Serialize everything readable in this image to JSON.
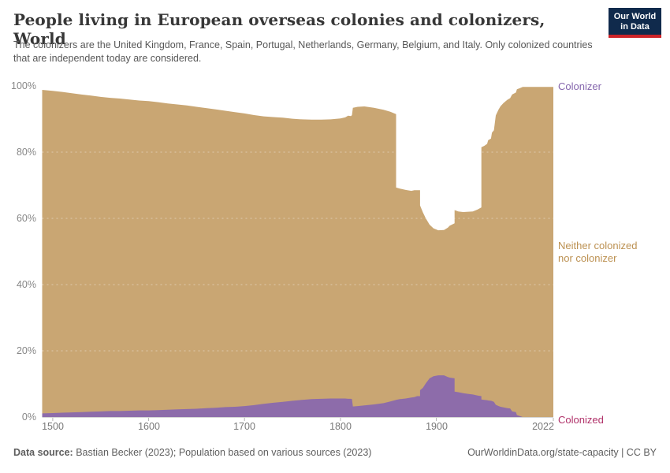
{
  "header": {
    "title": "People living in European overseas colonies and colonizers, World",
    "subtitle": "The colonizers are the United Kingdom, France, Spain, Portugal, Netherlands, Germany, Belgium, and Italy. Only colonized countries that are independent today are considered.",
    "logo": {
      "line1": "Our World",
      "line2": "in Data",
      "bg_color": "#102a4c",
      "accent_color": "#cd2328"
    }
  },
  "footer": {
    "source_label": "Data source:",
    "source_text": " Bastian Becker (2023); Population based on various sources (2023)",
    "credit": "OurWorldinData.org/state-capacity | CC BY"
  },
  "chart_data": {
    "type": "area",
    "stacked": true,
    "title": "People living in European overseas colonies and colonizers, World",
    "xlabel": "Year",
    "ylabel": "Share of world population",
    "xlim": [
      1489,
      2022
    ],
    "ylim": [
      0,
      100
    ],
    "grid": "horizontal dotted lines every 20%",
    "legend_position": "direct labels at right edge of plot",
    "x_ticks": [
      1500,
      1600,
      1700,
      1800,
      1900,
      2022
    ],
    "x_tick_labels": [
      "1500",
      "1600",
      "1700",
      "1800",
      "1900",
      "2022"
    ],
    "y_ticks": [
      0,
      20,
      40,
      60,
      80,
      100
    ],
    "y_tick_labels": [
      "0%",
      "20%",
      "40%",
      "60%",
      "80%",
      "100%"
    ],
    "right_labels": {
      "top": "Colonizer",
      "middle": [
        "Neither colonized",
        "nor colonizer"
      ],
      "bottom": "Colonized"
    },
    "x": [
      1489,
      1500,
      1510,
      1520,
      1530,
      1540,
      1550,
      1560,
      1570,
      1580,
      1590,
      1600,
      1610,
      1620,
      1630,
      1640,
      1650,
      1660,
      1670,
      1680,
      1690,
      1700,
      1710,
      1720,
      1730,
      1740,
      1750,
      1760,
      1770,
      1780,
      1790,
      1800,
      1805,
      1808,
      1811,
      1812,
      1813,
      1818,
      1825,
      1835,
      1845,
      1852,
      1857,
      1858,
      1858,
      1862,
      1868,
      1874,
      1877,
      1880,
      1883,
      1883,
      1886,
      1889,
      1893,
      1897,
      1902,
      1908,
      1912,
      1914,
      1919,
      1919,
      1923,
      1928,
      1933,
      1938,
      1943,
      1947,
      1947,
      1950,
      1953,
      1954,
      1957,
      1958,
      1960,
      1962,
      1965,
      1967,
      1970,
      1974,
      1977,
      1979,
      1983,
      1984,
      1987,
      1990,
      2000,
      2010,
      2022
    ],
    "series": [
      {
        "name": "Colonized",
        "color": "#ad3468",
        "label_color": "#b03169",
        "values": [
          0.1,
          0.3,
          0.5,
          0.8,
          1.1,
          1.3,
          1.6,
          1.8,
          2.0,
          2.2,
          2.4,
          2.6,
          2.8,
          3.1,
          3.3,
          3.5,
          3.8,
          4.0,
          4.3,
          4.5,
          4.8,
          5.0,
          5.2,
          5.2,
          5.1,
          5.0,
          5.0,
          4.9,
          4.8,
          4.7,
          4.5,
          4.2,
          3.9,
          3.5,
          3.6,
          3.4,
          3.4,
          3.0,
          2.7,
          2.8,
          3.0,
          3.1,
          3.3,
          3.3,
          25.5,
          25.6,
          25.8,
          25.8,
          25.5,
          25.2,
          25.2,
          28.0,
          29.4,
          29.8,
          30.2,
          30.7,
          31.0,
          30.9,
          30.7,
          30.3,
          29.8,
          29.8,
          30.4,
          30.9,
          31.0,
          31.1,
          30.8,
          30.4,
          13.2,
          12.9,
          12.4,
          11.4,
          11.0,
          9.3,
          8.8,
          5.2,
          3.8,
          3.0,
          2.3,
          1.5,
          1.1,
          0.9,
          0.5,
          0.4,
          0.4,
          0.3,
          0.3,
          0.3,
          0.3
        ]
      },
      {
        "name": "Neither colonized nor colonizer",
        "color": "#c9a673",
        "label_color": "#bc9152",
        "values": [
          98.8,
          98.5,
          98.2,
          97.8,
          97.4,
          97.1,
          96.7,
          96.4,
          96.2,
          95.9,
          95.6,
          95.4,
          95.1,
          94.7,
          94.4,
          94.1,
          93.7,
          93.3,
          92.9,
          92.5,
          92.1,
          91.7,
          91.2,
          90.8,
          90.6,
          90.4,
          90.1,
          89.9,
          89.8,
          89.8,
          89.9,
          90.2,
          90.5,
          91.0,
          90.9,
          91.2,
          93.4,
          93.7,
          93.8,
          93.4,
          92.8,
          92.2,
          91.6,
          91.5,
          69.3,
          69.0,
          68.6,
          68.3,
          68.5,
          68.5,
          68.5,
          63.9,
          61.8,
          60.0,
          58.1,
          57.0,
          56.4,
          56.5,
          57.2,
          57.8,
          58.5,
          62.5,
          62.1,
          61.9,
          62.0,
          62.1,
          62.7,
          63.3,
          81.5,
          81.9,
          82.5,
          83.6,
          84.1,
          85.9,
          86.6,
          91.1,
          92.9,
          93.9,
          94.8,
          95.8,
          96.3,
          97.4,
          98.0,
          99.0,
          99.3,
          99.7,
          99.7,
          99.7,
          99.7
        ]
      },
      {
        "name": "Colonizer",
        "color": "#8d6caa",
        "label_color": "#8566ad",
        "values": [
          1.1,
          1.2,
          1.3,
          1.4,
          1.5,
          1.6,
          1.7,
          1.8,
          1.8,
          1.9,
          2.0,
          2.0,
          2.1,
          2.2,
          2.3,
          2.4,
          2.5,
          2.7,
          2.8,
          3.0,
          3.1,
          3.3,
          3.6,
          4.0,
          4.3,
          4.6,
          4.9,
          5.2,
          5.4,
          5.5,
          5.6,
          5.6,
          5.6,
          5.5,
          5.5,
          5.4,
          3.2,
          3.3,
          3.5,
          3.8,
          4.2,
          4.7,
          5.1,
          5.2,
          5.2,
          5.4,
          5.6,
          5.9,
          6.0,
          6.3,
          6.3,
          8.1,
          8.8,
          10.2,
          11.7,
          12.3,
          12.6,
          12.6,
          12.1,
          11.9,
          11.7,
          7.7,
          7.5,
          7.2,
          7.0,
          6.8,
          6.5,
          6.3,
          5.3,
          5.2,
          5.1,
          5.0,
          4.9,
          4.8,
          4.6,
          3.7,
          3.3,
          3.1,
          2.9,
          2.7,
          2.6,
          1.7,
          1.5,
          0.6,
          0.3,
          0.0,
          0.0,
          0.0,
          0.0
        ]
      }
    ]
  }
}
